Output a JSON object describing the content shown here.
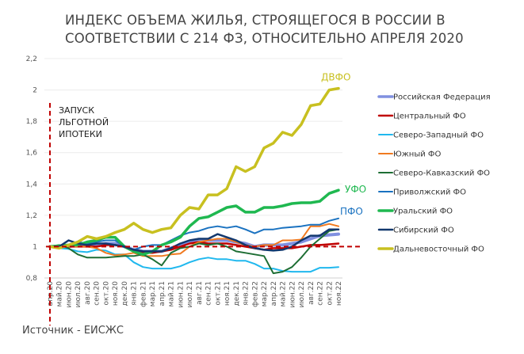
{
  "title": "ИНДЕКС ОБЪЕМА ЖИЛЬЯ, СТРОЯЩЕГОСЯ В РОССИИ В СООТВЕТСТВИИ С 214 ФЗ, ОТНОСИТЕЛЬНО АПРЕЛЯ 2020",
  "source": "Источник - ЕИСЖС",
  "chart_data": {
    "type": "line",
    "title": "ИНДЕКС ОБЪЕМА ЖИЛЬЯ, СТРОЯЩЕГОСЯ В РОССИИ В СООТВЕТСТВИИ С 214 ФЗ, ОТНОСИТЕЛЬНО АПРЕЛЯ 2020",
    "categories": [
      "апр.20",
      "май.20",
      "июн.20",
      "июл.20",
      "авг.20",
      "сен.20",
      "окт.20",
      "ноя.20",
      "дек.20",
      "янв.21",
      "фев.21",
      "мар.21",
      "апр.21",
      "май.21",
      "июн.21",
      "июл.21",
      "авг.21",
      "сен.21",
      "окт.21",
      "ноя.21",
      "дек.21",
      "янв.22",
      "фев.22",
      "мар.22",
      "апр.22",
      "май.22",
      "июн.22",
      "июл.22",
      "авг.22",
      "сен.22",
      "окт.22",
      "ноя.22"
    ],
    "yticks": [
      "0,8",
      "1",
      "1,2",
      "1,4",
      "1,6",
      "1,8",
      "2",
      "2,2"
    ],
    "ylim": [
      0.8,
      2.2
    ],
    "grid": true,
    "legend_position": "right",
    "annotation": [
      "ЗАПУСК",
      "ЛЬГОТНОЙ",
      "ИПОТЕКИ"
    ],
    "reference_line_y": 1,
    "reference_line_x": "апр.20",
    "end_labels": {
      "ДВФО": "ДВФО",
      "УФО": "УФО",
      "ПФО": "ПФО"
    },
    "series": [
      {
        "name": "Российская Федерация",
        "color": "#8090e0",
        "width": 4,
        "values": [
          1.0,
          1.0,
          1.0,
          1.01,
          1.01,
          1.01,
          1.02,
          1.02,
          1.0,
          0.98,
          0.97,
          0.97,
          0.97,
          0.99,
          1.01,
          1.03,
          1.04,
          1.04,
          1.04,
          1.04,
          1.03,
          1.02,
          1.0,
          1.01,
          1.01,
          1.01,
          1.02,
          1.03,
          1.05,
          1.07,
          1.075,
          1.08
        ]
      },
      {
        "name": "Центральный ФО",
        "color": "#c00000",
        "width": 2.5,
        "values": [
          1.0,
          1.0,
          1.0,
          1.0,
          1.0,
          1.0,
          1.01,
          1.01,
          1.0,
          0.97,
          0.96,
          0.96,
          0.97,
          0.98,
          1.0,
          1.02,
          1.03,
          1.02,
          1.02,
          1.02,
          1.01,
          1.0,
          0.99,
          0.98,
          0.99,
          0.99,
          0.99,
          1.0,
          1.01,
          1.01,
          1.015,
          1.02
        ]
      },
      {
        "name": "Северо-Западный ФО",
        "color": "#20b8ee",
        "width": 2,
        "values": [
          1.0,
          0.99,
          0.985,
          0.97,
          0.965,
          0.98,
          0.975,
          0.95,
          0.95,
          0.9,
          0.87,
          0.86,
          0.86,
          0.86,
          0.875,
          0.9,
          0.92,
          0.93,
          0.92,
          0.92,
          0.91,
          0.91,
          0.89,
          0.86,
          0.86,
          0.845,
          0.84,
          0.84,
          0.84,
          0.865,
          0.865,
          0.87
        ]
      },
      {
        "name": "Южный ФО",
        "color": "#f07a20",
        "width": 2,
        "values": [
          1.0,
          1.0,
          1.0,
          1.0,
          1.0,
          0.99,
          0.96,
          0.945,
          0.95,
          0.96,
          0.94,
          0.94,
          0.94,
          0.95,
          0.955,
          1.0,
          1.03,
          1.04,
          1.05,
          1.05,
          1.03,
          1.01,
          1.0,
          1.01,
          1.01,
          1.04,
          1.04,
          1.045,
          1.13,
          1.13,
          1.145,
          1.13
        ]
      },
      {
        "name": "Северо-Кавказский ФО",
        "color": "#1e6e34",
        "width": 2,
        "values": [
          1.0,
          1.01,
          0.99,
          0.95,
          0.93,
          0.93,
          0.93,
          0.935,
          0.94,
          0.94,
          0.95,
          0.92,
          0.88,
          0.96,
          0.99,
          1.0,
          1.02,
          1.01,
          1.02,
          1.0,
          0.97,
          0.96,
          0.95,
          0.94,
          0.83,
          0.84,
          0.87,
          0.93,
          1.0,
          1.05,
          1.1,
          1.11
        ]
      },
      {
        "name": "Приволжский ФО",
        "color": "#1a72c0",
        "width": 2,
        "values": [
          1.0,
          1.0,
          1.01,
          1.03,
          1.02,
          1.03,
          1.04,
          1.04,
          1.0,
          0.98,
          1.0,
          1.01,
          1.01,
          1.04,
          1.07,
          1.09,
          1.1,
          1.12,
          1.13,
          1.12,
          1.13,
          1.11,
          1.085,
          1.11,
          1.11,
          1.12,
          1.125,
          1.13,
          1.14,
          1.14,
          1.165,
          1.18
        ]
      },
      {
        "name": "Уральский ФО",
        "color": "#1fb850",
        "width": 3.5,
        "values": [
          1.0,
          1.005,
          1.01,
          1.01,
          1.03,
          1.04,
          1.06,
          1.06,
          1.0,
          0.97,
          0.95,
          0.97,
          1.01,
          1.03,
          1.06,
          1.13,
          1.18,
          1.19,
          1.22,
          1.25,
          1.26,
          1.22,
          1.22,
          1.25,
          1.25,
          1.26,
          1.275,
          1.28,
          1.28,
          1.29,
          1.34,
          1.36
        ]
      },
      {
        "name": "Сибирский ФО",
        "color": "#12386e",
        "width": 2.5,
        "values": [
          1.0,
          1.0,
          1.04,
          1.02,
          1.01,
          1.02,
          1.02,
          1.01,
          1.0,
          0.98,
          0.97,
          0.97,
          0.97,
          0.99,
          1.02,
          1.04,
          1.05,
          1.05,
          1.08,
          1.06,
          1.04,
          1.01,
          0.99,
          0.98,
          0.975,
          0.98,
          1.0,
          1.04,
          1.07,
          1.07,
          1.11,
          1.11
        ]
      },
      {
        "name": "Дальневосточный ФО",
        "color": "#c8c020",
        "width": 3.5,
        "values": [
          1.0,
          0.99,
          1.01,
          1.03,
          1.065,
          1.05,
          1.065,
          1.09,
          1.11,
          1.15,
          1.11,
          1.09,
          1.11,
          1.12,
          1.2,
          1.25,
          1.24,
          1.33,
          1.33,
          1.37,
          1.51,
          1.48,
          1.51,
          1.63,
          1.66,
          1.73,
          1.71,
          1.78,
          1.9,
          1.91,
          2.0,
          2.01
        ]
      }
    ]
  }
}
